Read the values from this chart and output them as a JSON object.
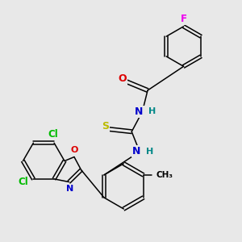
{
  "bg_color": "#e8e8e8",
  "atom_colors": {
    "C": "#000000",
    "N": "#0000cc",
    "O": "#dd0000",
    "S": "#bbbb00",
    "F": "#ee00ee",
    "Cl": "#00bb00",
    "H": "#008888"
  },
  "bond_color": "#000000",
  "lw": 1.1
}
